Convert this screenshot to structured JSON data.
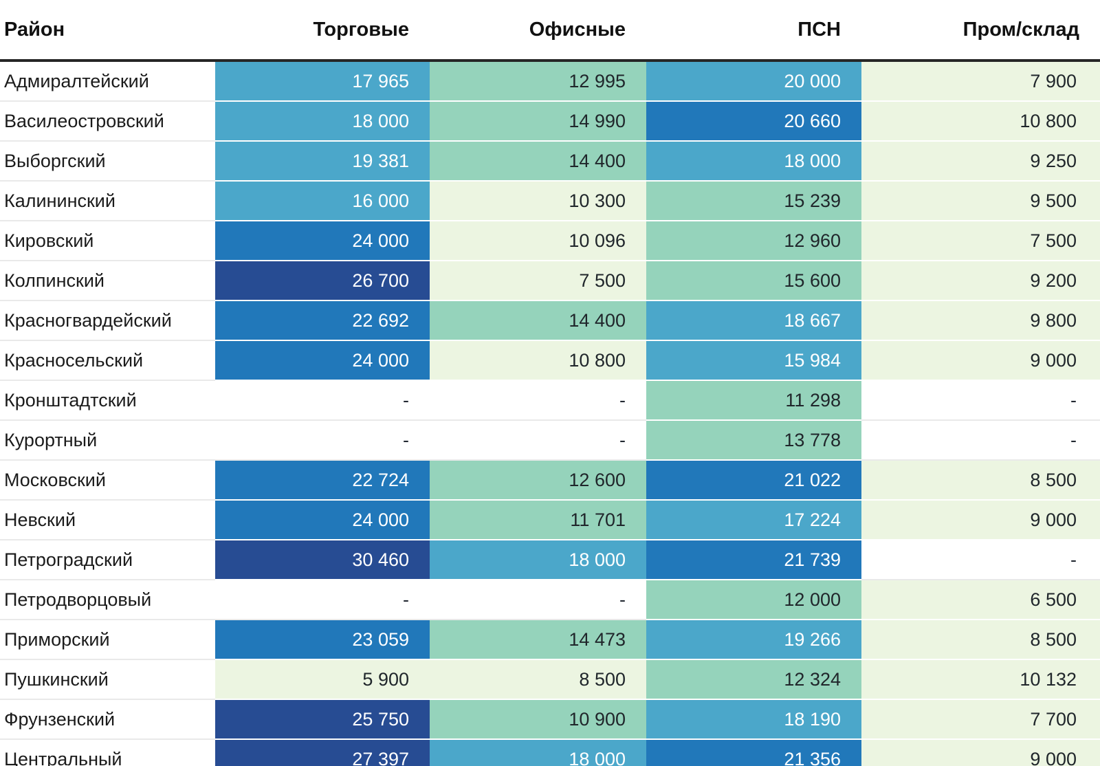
{
  "chart_data": {
    "type": "heatmap",
    "title": "",
    "columns": [
      "Район",
      "Торговые",
      "Офисные",
      "ПСН",
      "Пром/склад"
    ],
    "column_keys": [
      "district",
      "retail",
      "office",
      "psn",
      "industrial"
    ],
    "legend_position": "none",
    "palette": {
      "navy": "#274C93",
      "blue": "#2178BA",
      "sky": "#4BA7CA",
      "green": "#95D3BB",
      "pale": "#ECF5E1",
      "none": "#FFFFFF"
    },
    "rows": [
      {
        "district": "Адмиралтейский",
        "cells": [
          {
            "value": "17 965",
            "color": "sky"
          },
          {
            "value": "12 995",
            "color": "green"
          },
          {
            "value": "20 000",
            "color": "sky"
          },
          {
            "value": "7 900",
            "color": "pale"
          }
        ]
      },
      {
        "district": "Василеостровский",
        "cells": [
          {
            "value": "18 000",
            "color": "sky"
          },
          {
            "value": "14 990",
            "color": "green"
          },
          {
            "value": "20 660",
            "color": "blue"
          },
          {
            "value": "10 800",
            "color": "pale"
          }
        ]
      },
      {
        "district": "Выборгский",
        "cells": [
          {
            "value": "19 381",
            "color": "sky"
          },
          {
            "value": "14 400",
            "color": "green"
          },
          {
            "value": "18 000",
            "color": "sky"
          },
          {
            "value": "9 250",
            "color": "pale"
          }
        ]
      },
      {
        "district": "Калининский",
        "cells": [
          {
            "value": "16 000",
            "color": "sky"
          },
          {
            "value": "10 300",
            "color": "pale"
          },
          {
            "value": "15 239",
            "color": "green"
          },
          {
            "value": "9 500",
            "color": "pale"
          }
        ]
      },
      {
        "district": "Кировский",
        "cells": [
          {
            "value": "24 000",
            "color": "blue"
          },
          {
            "value": "10 096",
            "color": "pale"
          },
          {
            "value": "12 960",
            "color": "green"
          },
          {
            "value": "7 500",
            "color": "pale"
          }
        ]
      },
      {
        "district": "Колпинский",
        "cells": [
          {
            "value": "26 700",
            "color": "navy"
          },
          {
            "value": "7 500",
            "color": "pale"
          },
          {
            "value": "15 600",
            "color": "green"
          },
          {
            "value": "9 200",
            "color": "pale"
          }
        ]
      },
      {
        "district": "Красногвардейский",
        "cells": [
          {
            "value": "22 692",
            "color": "blue"
          },
          {
            "value": "14 400",
            "color": "green"
          },
          {
            "value": "18 667",
            "color": "sky"
          },
          {
            "value": "9 800",
            "color": "pale"
          }
        ]
      },
      {
        "district": "Красносельский",
        "cells": [
          {
            "value": "24 000",
            "color": "blue"
          },
          {
            "value": "10 800",
            "color": "pale"
          },
          {
            "value": "15 984",
            "color": "sky"
          },
          {
            "value": "9 000",
            "color": "pale"
          }
        ]
      },
      {
        "district": "Кронштадтский",
        "cells": [
          {
            "value": "-",
            "color": "none"
          },
          {
            "value": "-",
            "color": "none"
          },
          {
            "value": "11 298",
            "color": "green"
          },
          {
            "value": "-",
            "color": "none"
          }
        ]
      },
      {
        "district": "Курортный",
        "cells": [
          {
            "value": "-",
            "color": "none"
          },
          {
            "value": "-",
            "color": "none"
          },
          {
            "value": "13 778",
            "color": "green"
          },
          {
            "value": "-",
            "color": "none"
          }
        ]
      },
      {
        "district": "Московский",
        "cells": [
          {
            "value": "22 724",
            "color": "blue"
          },
          {
            "value": "12 600",
            "color": "green"
          },
          {
            "value": "21 022",
            "color": "blue"
          },
          {
            "value": "8 500",
            "color": "pale"
          }
        ]
      },
      {
        "district": "Невский",
        "cells": [
          {
            "value": "24 000",
            "color": "blue"
          },
          {
            "value": "11 701",
            "color": "green"
          },
          {
            "value": "17 224",
            "color": "sky"
          },
          {
            "value": "9 000",
            "color": "pale"
          }
        ]
      },
      {
        "district": "Петроградский",
        "cells": [
          {
            "value": "30 460",
            "color": "navy"
          },
          {
            "value": "18 000",
            "color": "sky"
          },
          {
            "value": "21 739",
            "color": "blue"
          },
          {
            "value": "-",
            "color": "none"
          }
        ]
      },
      {
        "district": "Петродворцовый",
        "cells": [
          {
            "value": "-",
            "color": "none"
          },
          {
            "value": "-",
            "color": "none"
          },
          {
            "value": "12 000",
            "color": "green"
          },
          {
            "value": "6 500",
            "color": "pale"
          }
        ]
      },
      {
        "district": "Приморский",
        "cells": [
          {
            "value": "23 059",
            "color": "blue"
          },
          {
            "value": "14 473",
            "color": "green"
          },
          {
            "value": "19 266",
            "color": "sky"
          },
          {
            "value": "8 500",
            "color": "pale"
          }
        ]
      },
      {
        "district": "Пушкинский",
        "cells": [
          {
            "value": "5 900",
            "color": "pale"
          },
          {
            "value": "8 500",
            "color": "pale"
          },
          {
            "value": "12 324",
            "color": "green"
          },
          {
            "value": "10 132",
            "color": "pale"
          }
        ]
      },
      {
        "district": "Фрунзенский",
        "cells": [
          {
            "value": "25 750",
            "color": "navy"
          },
          {
            "value": "10 900",
            "color": "green"
          },
          {
            "value": "18 190",
            "color": "sky"
          },
          {
            "value": "7 700",
            "color": "pale"
          }
        ]
      },
      {
        "district": "Центральный",
        "cells": [
          {
            "value": "27 397",
            "color": "navy"
          },
          {
            "value": "18 000",
            "color": "sky"
          },
          {
            "value": "21 356",
            "color": "blue"
          },
          {
            "value": "9 000",
            "color": "pale"
          }
        ]
      }
    ]
  }
}
